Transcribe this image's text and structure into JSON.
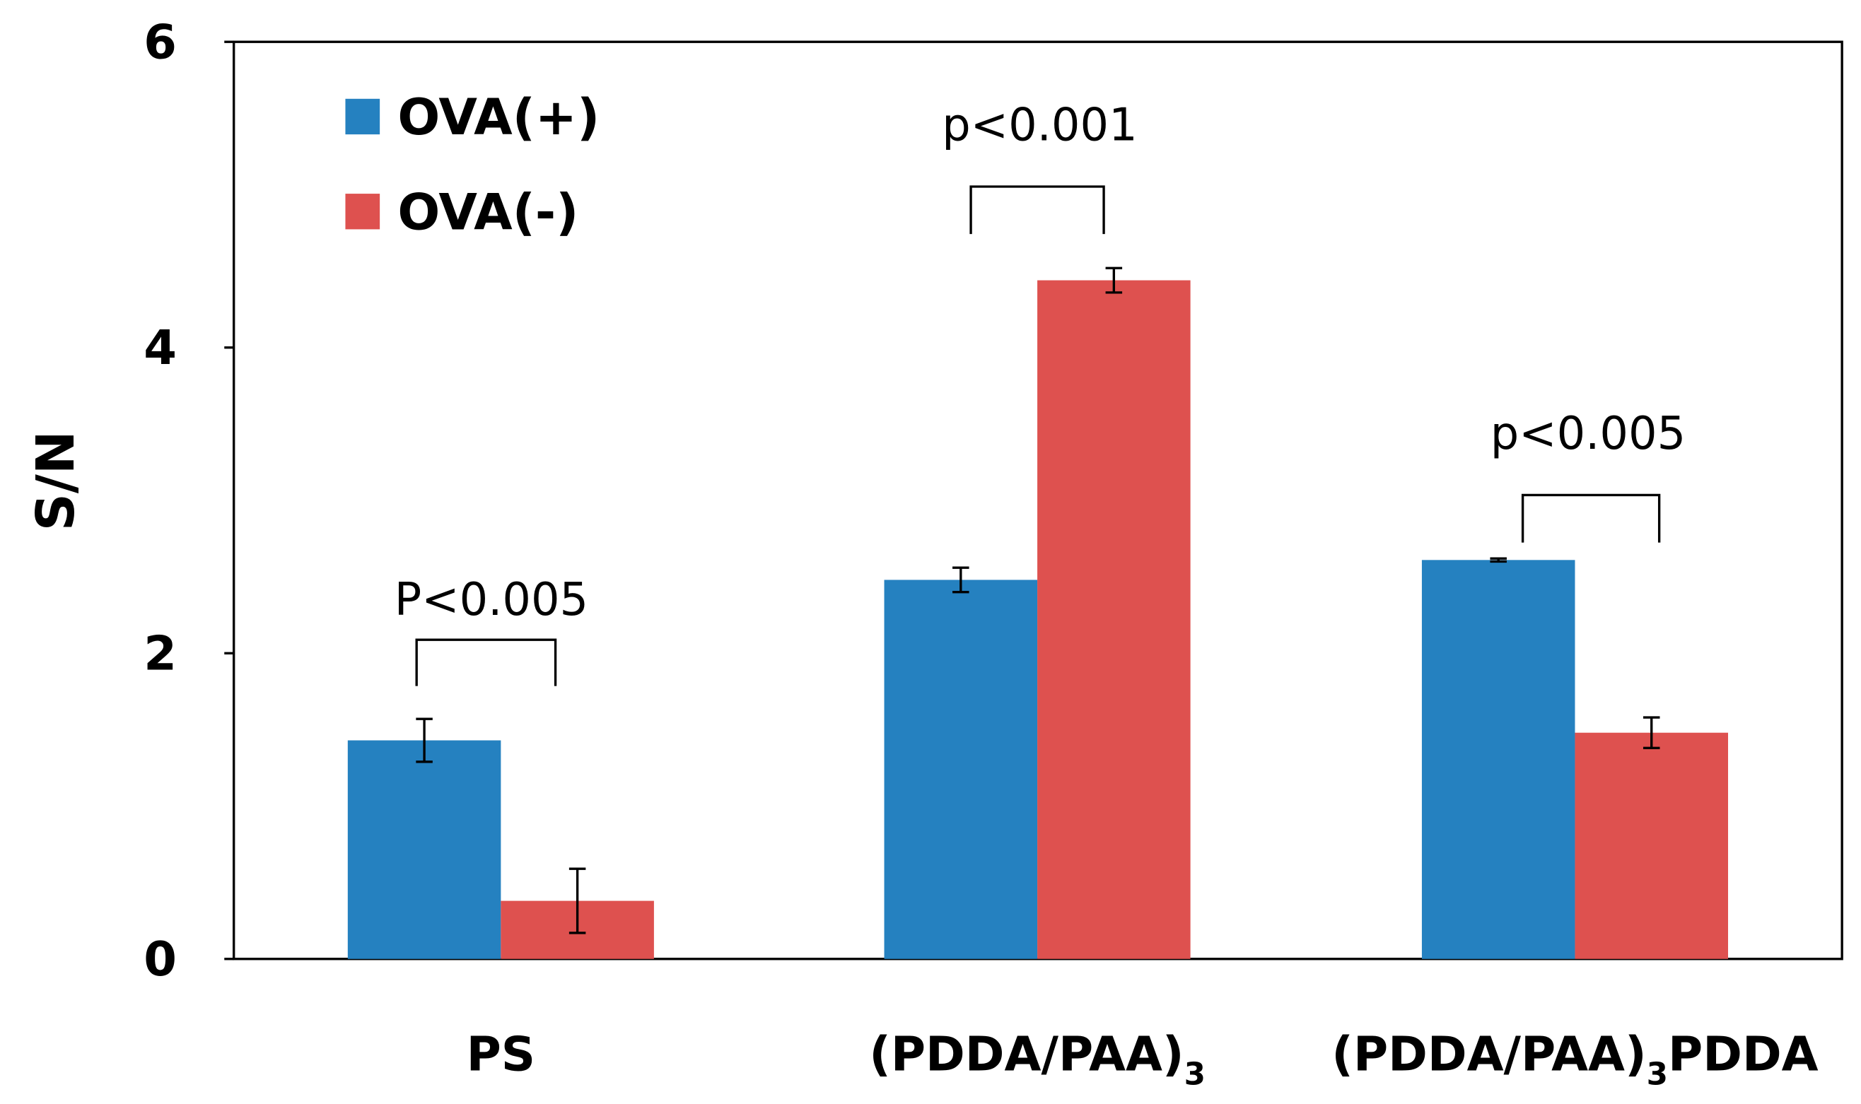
{
  "chart_data": {
    "type": "bar",
    "title": "",
    "xlabel": "",
    "ylabel": "S/N",
    "ylim": [
      0,
      6
    ],
    "yticks": [
      0,
      2,
      4,
      6
    ],
    "grid": false,
    "legend_position": "top-left",
    "categories": [
      "PS",
      "(PDDA/PAA)3",
      "(PDDA/PAA)3PDDA"
    ],
    "category_labels": [
      {
        "main": "PS",
        "sub": "",
        "tail": ""
      },
      {
        "main": "(PDDA/PAA)",
        "sub": "3",
        "tail": ""
      },
      {
        "main": "(PDDA/PAA)",
        "sub": "3",
        "tail": "PDDA"
      }
    ],
    "series": [
      {
        "name": "OVA(+)",
        "color": "#2581c0",
        "values": [
          1.43,
          2.48,
          2.61
        ],
        "errors": [
          0.14,
          0.08,
          0.01
        ]
      },
      {
        "name": "OVA(-)",
        "color": "#de514f",
        "values": [
          0.38,
          4.44,
          1.48
        ],
        "errors": [
          0.21,
          0.08,
          0.1
        ]
      }
    ],
    "annotations": [
      "P<0.005",
      "p<0.001",
      "p<0.005"
    ]
  }
}
